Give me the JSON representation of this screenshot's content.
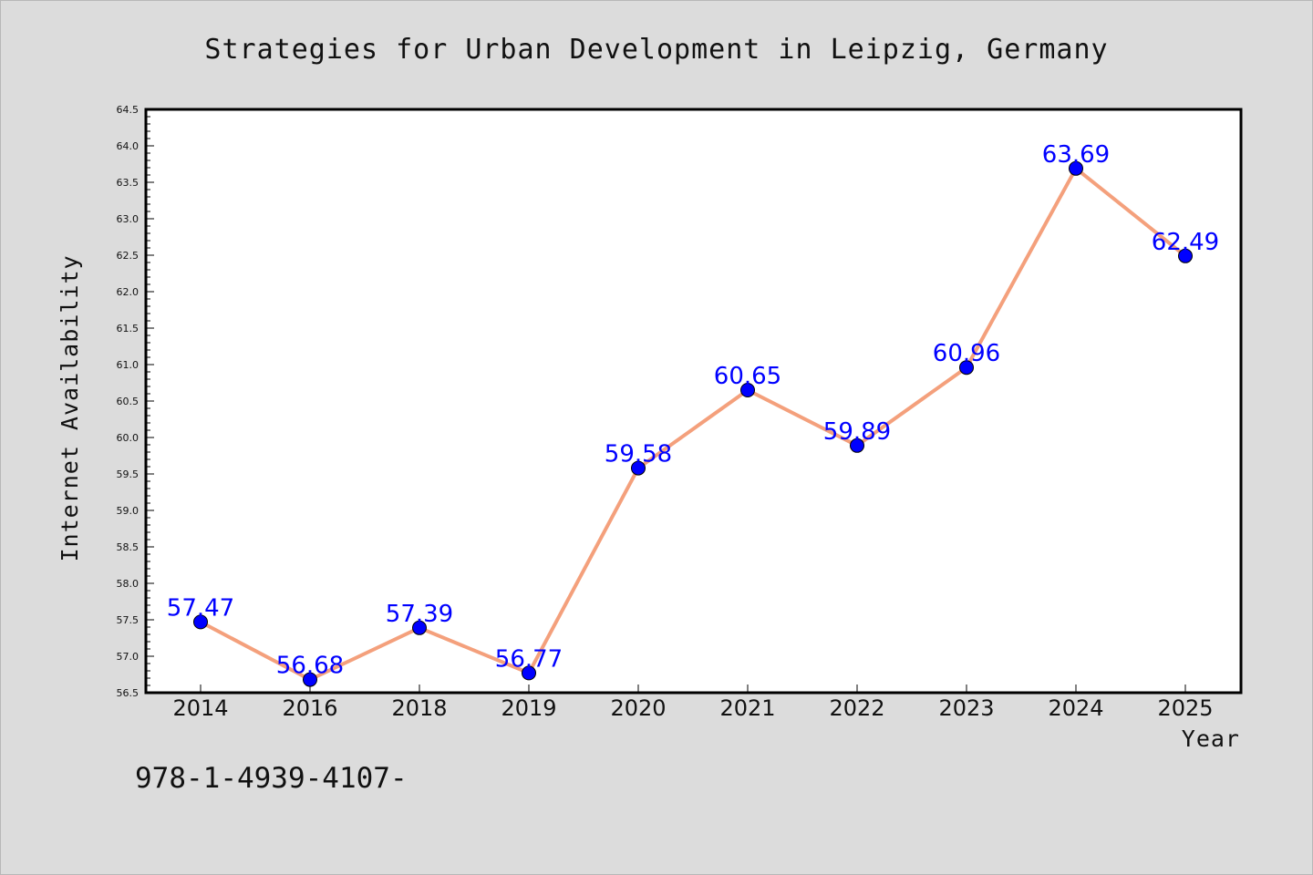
{
  "chart_data": {
    "type": "line",
    "title": "Strategies for Urban Development in Leipzig, Germany",
    "xlabel": "Year",
    "ylabel": "Internet Availability",
    "categories": [
      "2014",
      "2016",
      "2018",
      "2019",
      "2020",
      "2021",
      "2022",
      "2023",
      "2024",
      "2025"
    ],
    "series": [
      {
        "values": [
          57.47,
          56.68,
          57.39,
          56.77,
          59.58,
          60.65,
          59.89,
          60.96,
          63.69,
          62.49
        ]
      }
    ],
    "data_labels": [
      "57.47",
      "56.68",
      "57.39",
      "56.77",
      "59.58",
      "60.65",
      "59.89",
      "60.96",
      "63.69",
      "62.49"
    ],
    "ylim": [
      56.5,
      64.5
    ],
    "yticks": [
      "56.5",
      "57.0",
      "57.5",
      "58.0",
      "58.5",
      "59.0",
      "59.5",
      "60.0",
      "60.5",
      "61.0",
      "61.5",
      "62.0",
      "62.5",
      "63.0",
      "63.5",
      "64.0",
      "64.5"
    ],
    "grid": false,
    "colors": {
      "line": "#f4a07c",
      "marker": "#0000ff",
      "label": "#0000ff",
      "background": "#dcdcdc",
      "plot_area": "#ffffff"
    }
  },
  "footer": {
    "text": "978-1-4939-4107-"
  }
}
